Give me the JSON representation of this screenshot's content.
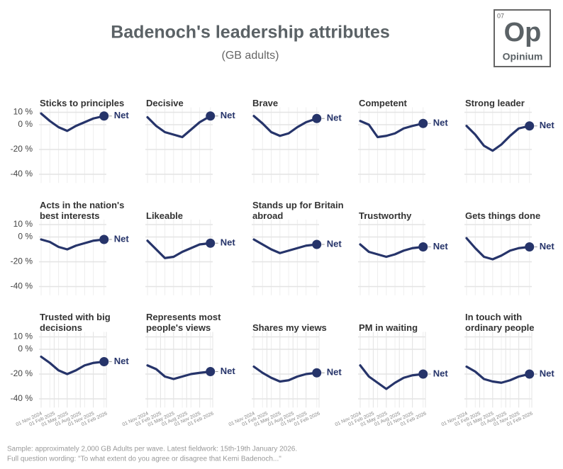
{
  "title": "Badenoch's leadership attributes",
  "subtitle": "(GB adults)",
  "logo": {
    "number": "07",
    "symbol": "Op",
    "name": "Opinium"
  },
  "footnotes": [
    "Sample: approximately 2,000 GB Adults per wave. Latest fieldwork: 15th-19th January 2026.",
    "Full question wording: \"To what extent do you agree or disagree that Kemi Badenoch...\""
  ],
  "chart_data": [
    {
      "type": "line",
      "title": "Sticks to principles",
      "x": [
        "2024-11-01",
        "2025-01-01",
        "2025-03-01",
        "2025-05-01",
        "2025-07-01",
        "2025-09-01",
        "2025-11-01",
        "2026-01-15"
      ],
      "series": [
        {
          "name": "Net",
          "color": "#26346a",
          "values": [
            9,
            3,
            -2,
            -5,
            -1,
            2,
            5,
            7
          ]
        }
      ],
      "ylim": [
        -47,
        14
      ],
      "yticks": [
        {
          "value": 10,
          "label": "10 %"
        },
        {
          "value": 0,
          "label": "0 %"
        },
        {
          "value": -20,
          "label": "-20 %"
        },
        {
          "value": -40,
          "label": "-40 %"
        }
      ]
    },
    {
      "type": "line",
      "title": "Decisive",
      "x": [
        "2024-11-01",
        "2025-01-01",
        "2025-03-01",
        "2025-05-01",
        "2025-07-01",
        "2025-09-01",
        "2025-11-01",
        "2026-01-15"
      ],
      "series": [
        {
          "name": "Net",
          "color": "#26346a",
          "values": [
            6,
            -1,
            -6,
            -8,
            -10,
            -4,
            2,
            7
          ]
        }
      ],
      "ylim": [
        -47,
        14
      ],
      "yticks": [
        {
          "value": 10,
          "label": "10 %"
        },
        {
          "value": 0,
          "label": "0 %"
        },
        {
          "value": -20,
          "label": "-20 %"
        },
        {
          "value": -40,
          "label": "-40 %"
        }
      ]
    },
    {
      "type": "line",
      "title": "Brave",
      "x": [
        "2024-11-01",
        "2025-01-01",
        "2025-03-01",
        "2025-05-01",
        "2025-07-01",
        "2025-09-01",
        "2025-11-01",
        "2026-01-15"
      ],
      "series": [
        {
          "name": "Net",
          "color": "#26346a",
          "values": [
            7,
            1,
            -6,
            -9,
            -7,
            -2,
            2,
            5
          ]
        }
      ],
      "ylim": [
        -47,
        14
      ],
      "yticks": [
        {
          "value": 10,
          "label": "10 %"
        },
        {
          "value": 0,
          "label": "0 %"
        },
        {
          "value": -20,
          "label": "-20 %"
        },
        {
          "value": -40,
          "label": "-40 %"
        }
      ]
    },
    {
      "type": "line",
      "title": "Competent",
      "x": [
        "2024-11-01",
        "2025-01-01",
        "2025-03-01",
        "2025-05-01",
        "2025-07-01",
        "2025-09-01",
        "2025-11-01",
        "2026-01-15"
      ],
      "series": [
        {
          "name": "Net",
          "color": "#26346a",
          "values": [
            3,
            0,
            -10,
            -9,
            -7,
            -3,
            -1,
            1
          ]
        }
      ],
      "ylim": [
        -47,
        14
      ],
      "yticks": [
        {
          "value": 10,
          "label": "10 %"
        },
        {
          "value": 0,
          "label": "0 %"
        },
        {
          "value": -20,
          "label": "-20 %"
        },
        {
          "value": -40,
          "label": "-40 %"
        }
      ]
    },
    {
      "type": "line",
      "title": "Strong leader",
      "x": [
        "2024-11-01",
        "2025-01-01",
        "2025-03-01",
        "2025-05-01",
        "2025-07-01",
        "2025-09-01",
        "2025-11-01",
        "2026-01-15"
      ],
      "series": [
        {
          "name": "Net",
          "color": "#26346a",
          "values": [
            -1,
            -8,
            -17,
            -21,
            -16,
            -9,
            -3,
            -1
          ]
        }
      ],
      "ylim": [
        -47,
        14
      ],
      "yticks": [
        {
          "value": 10,
          "label": "10 %"
        },
        {
          "value": 0,
          "label": "0 %"
        },
        {
          "value": -20,
          "label": "-20 %"
        },
        {
          "value": -40,
          "label": "-40 %"
        }
      ]
    },
    {
      "type": "line",
      "title": "Acts in the nation's best interests",
      "x": [
        "2024-11-01",
        "2025-01-01",
        "2025-03-01",
        "2025-05-01",
        "2025-07-01",
        "2025-09-01",
        "2025-11-01",
        "2026-01-15"
      ],
      "series": [
        {
          "name": "Net",
          "color": "#26346a",
          "values": [
            -2,
            -4,
            -8,
            -10,
            -7,
            -5,
            -3,
            -2
          ]
        }
      ],
      "ylim": [
        -47,
        14
      ],
      "yticks": [
        {
          "value": 10,
          "label": "10 %"
        },
        {
          "value": 0,
          "label": "0 %"
        },
        {
          "value": -20,
          "label": "-20 %"
        },
        {
          "value": -40,
          "label": "-40 %"
        }
      ]
    },
    {
      "type": "line",
      "title": "Likeable",
      "x": [
        "2024-11-01",
        "2025-01-01",
        "2025-03-01",
        "2025-05-01",
        "2025-07-01",
        "2025-09-01",
        "2025-11-01",
        "2026-01-15"
      ],
      "series": [
        {
          "name": "Net",
          "color": "#26346a",
          "values": [
            -3,
            -10,
            -17,
            -16,
            -12,
            -9,
            -6,
            -5
          ]
        }
      ],
      "ylim": [
        -47,
        14
      ],
      "yticks": [
        {
          "value": 10,
          "label": "10 %"
        },
        {
          "value": 0,
          "label": "0 %"
        },
        {
          "value": -20,
          "label": "-20 %"
        },
        {
          "value": -40,
          "label": "-40 %"
        }
      ]
    },
    {
      "type": "line",
      "title": "Stands up for Britain abroad",
      "x": [
        "2024-11-01",
        "2025-01-01",
        "2025-03-01",
        "2025-05-01",
        "2025-07-01",
        "2025-09-01",
        "2025-11-01",
        "2026-01-15"
      ],
      "series": [
        {
          "name": "Net",
          "color": "#26346a",
          "values": [
            -2,
            -6,
            -10,
            -13,
            -11,
            -9,
            -7,
            -6
          ]
        }
      ],
      "ylim": [
        -47,
        14
      ],
      "yticks": [
        {
          "value": 10,
          "label": "10 %"
        },
        {
          "value": 0,
          "label": "0 %"
        },
        {
          "value": -20,
          "label": "-20 %"
        },
        {
          "value": -40,
          "label": "-40 %"
        }
      ]
    },
    {
      "type": "line",
      "title": "Trustworthy",
      "x": [
        "2024-11-01",
        "2025-01-01",
        "2025-03-01",
        "2025-05-01",
        "2025-07-01",
        "2025-09-01",
        "2025-11-01",
        "2026-01-15"
      ],
      "series": [
        {
          "name": "Net",
          "color": "#26346a",
          "values": [
            -6,
            -12,
            -14,
            -16,
            -14,
            -11,
            -9,
            -8
          ]
        }
      ],
      "ylim": [
        -47,
        14
      ],
      "yticks": [
        {
          "value": 10,
          "label": "10 %"
        },
        {
          "value": 0,
          "label": "0 %"
        },
        {
          "value": -20,
          "label": "-20 %"
        },
        {
          "value": -40,
          "label": "-40 %"
        }
      ]
    },
    {
      "type": "line",
      "title": "Gets things done",
      "x": [
        "2024-11-01",
        "2025-01-01",
        "2025-03-01",
        "2025-05-01",
        "2025-07-01",
        "2025-09-01",
        "2025-11-01",
        "2026-01-15"
      ],
      "series": [
        {
          "name": "Net",
          "color": "#26346a",
          "values": [
            -1,
            -9,
            -16,
            -18,
            -15,
            -11,
            -9,
            -8
          ]
        }
      ],
      "ylim": [
        -47,
        14
      ],
      "yticks": [
        {
          "value": 10,
          "label": "10 %"
        },
        {
          "value": 0,
          "label": "0 %"
        },
        {
          "value": -20,
          "label": "-20 %"
        },
        {
          "value": -40,
          "label": "-40 %"
        }
      ]
    },
    {
      "type": "line",
      "title": "Trusted with big decisions",
      "x": [
        "2024-11-01",
        "2025-01-01",
        "2025-03-01",
        "2025-05-01",
        "2025-07-01",
        "2025-09-01",
        "2025-11-01",
        "2026-01-15"
      ],
      "series": [
        {
          "name": "Net",
          "color": "#26346a",
          "values": [
            -6,
            -11,
            -17,
            -20,
            -17,
            -13,
            -11,
            -10
          ]
        }
      ],
      "ylim": [
        -47,
        14
      ],
      "yticks": [
        {
          "value": 10,
          "label": "10 %"
        },
        {
          "value": 0,
          "label": "0 %"
        },
        {
          "value": -20,
          "label": "-20 %"
        },
        {
          "value": -40,
          "label": "-40 %"
        }
      ],
      "xticks": [
        {
          "value": "2024-11-01",
          "label": "01 Nov 2024"
        },
        {
          "value": "2025-02-01",
          "label": "01 Feb 2025"
        },
        {
          "value": "2025-05-01",
          "label": "01 May 2025"
        },
        {
          "value": "2025-08-01",
          "label": "01 Aug 2025"
        },
        {
          "value": "2025-11-01",
          "label": "01 Nov 2025"
        },
        {
          "value": "2026-02-01",
          "label": "01 Feb 2026"
        }
      ]
    },
    {
      "type": "line",
      "title": "Represents most people's views",
      "x": [
        "2024-11-01",
        "2025-01-01",
        "2025-03-01",
        "2025-05-01",
        "2025-07-01",
        "2025-09-01",
        "2025-11-01",
        "2026-01-15"
      ],
      "series": [
        {
          "name": "Net",
          "color": "#26346a",
          "values": [
            -13,
            -16,
            -22,
            -24,
            -22,
            -20,
            -19,
            -18
          ]
        }
      ],
      "ylim": [
        -47,
        14
      ],
      "yticks": [
        {
          "value": 10,
          "label": "10 %"
        },
        {
          "value": 0,
          "label": "0 %"
        },
        {
          "value": -20,
          "label": "-20 %"
        },
        {
          "value": -40,
          "label": "-40 %"
        }
      ],
      "xticks": [
        {
          "value": "2024-11-01",
          "label": "01 Nov 2024"
        },
        {
          "value": "2025-02-01",
          "label": "01 Feb 2025"
        },
        {
          "value": "2025-05-01",
          "label": "01 May 2025"
        },
        {
          "value": "2025-08-01",
          "label": "01 Aug 2025"
        },
        {
          "value": "2025-11-01",
          "label": "01 Nov 2025"
        },
        {
          "value": "2026-02-01",
          "label": "01 Feb 2026"
        }
      ]
    },
    {
      "type": "line",
      "title": "Shares my views",
      "x": [
        "2024-11-01",
        "2025-01-01",
        "2025-03-01",
        "2025-05-01",
        "2025-07-01",
        "2025-09-01",
        "2025-11-01",
        "2026-01-15"
      ],
      "series": [
        {
          "name": "Net",
          "color": "#26346a",
          "values": [
            -14,
            -19,
            -23,
            -26,
            -25,
            -22,
            -20,
            -19
          ]
        }
      ],
      "ylim": [
        -47,
        14
      ],
      "yticks": [
        {
          "value": 10,
          "label": "10 %"
        },
        {
          "value": 0,
          "label": "0 %"
        },
        {
          "value": -20,
          "label": "-20 %"
        },
        {
          "value": -40,
          "label": "-40 %"
        }
      ],
      "xticks": [
        {
          "value": "2024-11-01",
          "label": "01 Nov 2024"
        },
        {
          "value": "2025-02-01",
          "label": "01 Feb 2025"
        },
        {
          "value": "2025-05-01",
          "label": "01 May 2025"
        },
        {
          "value": "2025-08-01",
          "label": "01 Aug 2025"
        },
        {
          "value": "2025-11-01",
          "label": "01 Nov 2025"
        },
        {
          "value": "2026-02-01",
          "label": "01 Feb 2026"
        }
      ]
    },
    {
      "type": "line",
      "title": "PM in waiting",
      "x": [
        "2024-11-01",
        "2025-01-01",
        "2025-03-01",
        "2025-05-01",
        "2025-07-01",
        "2025-09-01",
        "2025-11-01",
        "2026-01-15"
      ],
      "series": [
        {
          "name": "Net",
          "color": "#26346a",
          "values": [
            -13,
            -22,
            -27,
            -32,
            -27,
            -23,
            -21,
            -20
          ]
        }
      ],
      "ylim": [
        -47,
        14
      ],
      "yticks": [
        {
          "value": 10,
          "label": "10 %"
        },
        {
          "value": 0,
          "label": "0 %"
        },
        {
          "value": -20,
          "label": "-20 %"
        },
        {
          "value": -40,
          "label": "-40 %"
        }
      ],
      "xticks": [
        {
          "value": "2024-11-01",
          "label": "01 Nov 2024"
        },
        {
          "value": "2025-02-01",
          "label": "01 Feb 2025"
        },
        {
          "value": "2025-05-01",
          "label": "01 May 2025"
        },
        {
          "value": "2025-08-01",
          "label": "01 Aug 2025"
        },
        {
          "value": "2025-11-01",
          "label": "01 Nov 2025"
        },
        {
          "value": "2026-02-01",
          "label": "01 Feb 2026"
        }
      ]
    },
    {
      "type": "line",
      "title": "In touch with ordinary people",
      "x": [
        "2024-11-01",
        "2025-01-01",
        "2025-03-01",
        "2025-05-01",
        "2025-07-01",
        "2025-09-01",
        "2025-11-01",
        "2026-01-15"
      ],
      "series": [
        {
          "name": "Net",
          "color": "#26346a",
          "values": [
            -14,
            -18,
            -24,
            -26,
            -27,
            -25,
            -22,
            -20
          ]
        }
      ],
      "ylim": [
        -47,
        14
      ],
      "yticks": [
        {
          "value": 10,
          "label": "10 %"
        },
        {
          "value": 0,
          "label": "0 %"
        },
        {
          "value": -20,
          "label": "-20 %"
        },
        {
          "value": -40,
          "label": "-40 %"
        }
      ],
      "xticks": [
        {
          "value": "2024-11-01",
          "label": "01 Nov 2024"
        },
        {
          "value": "2025-02-01",
          "label": "01 Feb 2025"
        },
        {
          "value": "2025-05-01",
          "label": "01 May 2025"
        },
        {
          "value": "2025-08-01",
          "label": "01 Aug 2025"
        },
        {
          "value": "2025-11-01",
          "label": "01 Nov 2025"
        },
        {
          "value": "2026-02-01",
          "label": "01 Feb 2026"
        }
      ]
    }
  ]
}
